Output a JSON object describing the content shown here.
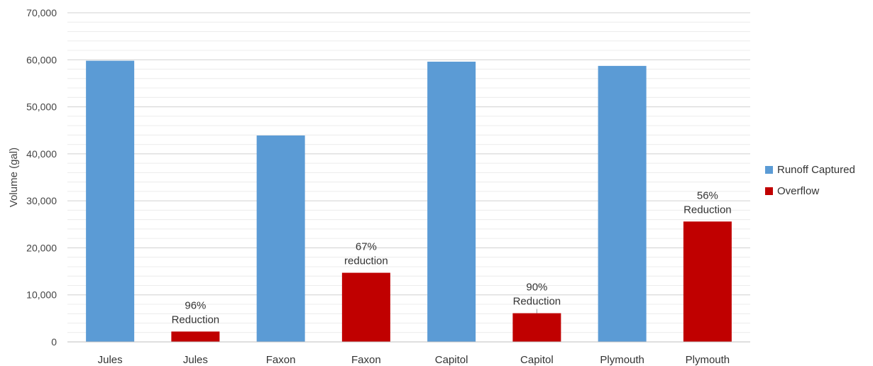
{
  "chart_data": {
    "type": "bar",
    "ylabel": "Volume (gal)",
    "xlabel": "",
    "ylim": [
      0,
      70000
    ],
    "yticks": [
      0,
      10000,
      20000,
      30000,
      40000,
      50000,
      60000,
      70000
    ],
    "ytick_labels": [
      "0",
      "10,000",
      "20,000",
      "30,000",
      "40,000",
      "50,000",
      "60,000",
      "70,000"
    ],
    "grid": true,
    "legend_position": "right",
    "categories": [
      "Jules",
      "Jules",
      "Faxon",
      "Faxon",
      "Capitol",
      "Capitol",
      "Plymouth",
      "Plymouth"
    ],
    "values": [
      59800,
      2200,
      43900,
      14700,
      59600,
      6100,
      58700,
      25600
    ],
    "bar_series": [
      "Runoff Captured",
      "Overflow",
      "Runoff Captured",
      "Overflow",
      "Runoff Captured",
      "Overflow",
      "Runoff Captured",
      "Overflow"
    ],
    "series": [
      {
        "name": "Runoff Captured",
        "color": "#5B9BD5"
      },
      {
        "name": "Overflow",
        "color": "#C00000"
      }
    ],
    "annotations": [
      {
        "bar_index": 1,
        "lines": [
          "96%",
          "Reduction"
        ]
      },
      {
        "bar_index": 3,
        "lines": [
          "67%",
          "reduction"
        ]
      },
      {
        "bar_index": 5,
        "lines": [
          "90%",
          "Reduction"
        ]
      },
      {
        "bar_index": 7,
        "lines": [
          "56%",
          "Reduction"
        ]
      }
    ]
  }
}
